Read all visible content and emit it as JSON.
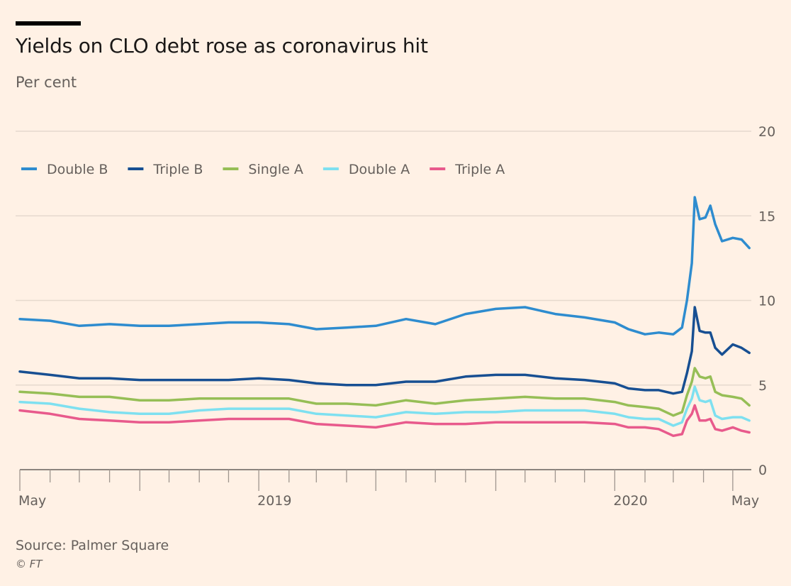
{
  "title": "Yields on CLO debt rose as coronavirus hit",
  "subtitle": "Per cent",
  "source": "Source: Palmer Square",
  "credit": "© FT",
  "colors": {
    "background": "#fff1e5",
    "grid": "#e6d9ce",
    "axis": "#66605c",
    "double_b": "#2e8ccf",
    "triple_b": "#174f92",
    "single_a": "#96be56",
    "double_a": "#7ee0f0",
    "triple_a": "#e85a8c"
  },
  "chart_data": {
    "type": "line",
    "title": "Yields on CLO debt rose as coronavirus hit",
    "ylabel": "Per cent",
    "ylim": [
      0,
      20
    ],
    "yticks": [
      0,
      5,
      10,
      15,
      20
    ],
    "xlim": [
      "2018-05-01",
      "2020-05-20"
    ],
    "xtick_labels": [
      {
        "date": "2018-05-01",
        "label": "May"
      },
      {
        "date": "2019-01-01",
        "label": "2019"
      },
      {
        "date": "2020-01-01",
        "label": "2020"
      },
      {
        "date": "2020-05-01",
        "label": "May"
      }
    ],
    "grid": true,
    "legend_position": "top-left",
    "series": [
      {
        "name": "Double B",
        "color_key": "double_b",
        "points": [
          [
            "2018-05-01",
            8.9
          ],
          [
            "2018-06-01",
            8.8
          ],
          [
            "2018-07-01",
            8.5
          ],
          [
            "2018-08-01",
            8.6
          ],
          [
            "2018-09-01",
            8.5
          ],
          [
            "2018-10-01",
            8.5
          ],
          [
            "2018-11-01",
            8.6
          ],
          [
            "2018-12-01",
            8.7
          ],
          [
            "2019-01-01",
            8.7
          ],
          [
            "2019-02-01",
            8.6
          ],
          [
            "2019-03-01",
            8.3
          ],
          [
            "2019-04-01",
            8.4
          ],
          [
            "2019-05-01",
            8.5
          ],
          [
            "2019-06-01",
            8.9
          ],
          [
            "2019-07-01",
            8.6
          ],
          [
            "2019-08-01",
            9.2
          ],
          [
            "2019-09-01",
            9.5
          ],
          [
            "2019-10-01",
            9.6
          ],
          [
            "2019-11-01",
            9.2
          ],
          [
            "2019-12-01",
            9.0
          ],
          [
            "2020-01-01",
            8.7
          ],
          [
            "2020-01-15",
            8.3
          ],
          [
            "2020-02-01",
            8.0
          ],
          [
            "2020-02-15",
            8.1
          ],
          [
            "2020-03-01",
            8.0
          ],
          [
            "2020-03-10",
            8.4
          ],
          [
            "2020-03-15",
            10.0
          ],
          [
            "2020-03-20",
            12.2
          ],
          [
            "2020-03-23",
            16.1
          ],
          [
            "2020-03-28",
            14.8
          ],
          [
            "2020-04-03",
            14.9
          ],
          [
            "2020-04-08",
            15.6
          ],
          [
            "2020-04-13",
            14.5
          ],
          [
            "2020-04-20",
            13.5
          ],
          [
            "2020-05-01",
            13.7
          ],
          [
            "2020-05-10",
            13.6
          ],
          [
            "2020-05-18",
            13.1
          ]
        ]
      },
      {
        "name": "Triple B",
        "color_key": "triple_b",
        "points": [
          [
            "2018-05-01",
            5.8
          ],
          [
            "2018-06-01",
            5.6
          ],
          [
            "2018-07-01",
            5.4
          ],
          [
            "2018-08-01",
            5.4
          ],
          [
            "2018-09-01",
            5.3
          ],
          [
            "2018-10-01",
            5.3
          ],
          [
            "2018-11-01",
            5.3
          ],
          [
            "2018-12-01",
            5.3
          ],
          [
            "2019-01-01",
            5.4
          ],
          [
            "2019-02-01",
            5.3
          ],
          [
            "2019-03-01",
            5.1
          ],
          [
            "2019-04-01",
            5.0
          ],
          [
            "2019-05-01",
            5.0
          ],
          [
            "2019-06-01",
            5.2
          ],
          [
            "2019-07-01",
            5.2
          ],
          [
            "2019-08-01",
            5.5
          ],
          [
            "2019-09-01",
            5.6
          ],
          [
            "2019-10-01",
            5.6
          ],
          [
            "2019-11-01",
            5.4
          ],
          [
            "2019-12-01",
            5.3
          ],
          [
            "2020-01-01",
            5.1
          ],
          [
            "2020-01-15",
            4.8
          ],
          [
            "2020-02-01",
            4.7
          ],
          [
            "2020-02-15",
            4.7
          ],
          [
            "2020-03-01",
            4.5
          ],
          [
            "2020-03-10",
            4.6
          ],
          [
            "2020-03-15",
            5.7
          ],
          [
            "2020-03-20",
            7.0
          ],
          [
            "2020-03-23",
            9.6
          ],
          [
            "2020-03-28",
            8.2
          ],
          [
            "2020-04-03",
            8.1
          ],
          [
            "2020-04-08",
            8.1
          ],
          [
            "2020-04-13",
            7.2
          ],
          [
            "2020-04-20",
            6.8
          ],
          [
            "2020-05-01",
            7.4
          ],
          [
            "2020-05-10",
            7.2
          ],
          [
            "2020-05-18",
            6.9
          ]
        ]
      },
      {
        "name": "Single A",
        "color_key": "single_a",
        "points": [
          [
            "2018-05-01",
            4.6
          ],
          [
            "2018-06-01",
            4.5
          ],
          [
            "2018-07-01",
            4.3
          ],
          [
            "2018-08-01",
            4.3
          ],
          [
            "2018-09-01",
            4.1
          ],
          [
            "2018-10-01",
            4.1
          ],
          [
            "2018-11-01",
            4.2
          ],
          [
            "2018-12-01",
            4.2
          ],
          [
            "2019-01-01",
            4.2
          ],
          [
            "2019-02-01",
            4.2
          ],
          [
            "2019-03-01",
            3.9
          ],
          [
            "2019-04-01",
            3.9
          ],
          [
            "2019-05-01",
            3.8
          ],
          [
            "2019-06-01",
            4.1
          ],
          [
            "2019-07-01",
            3.9
          ],
          [
            "2019-08-01",
            4.1
          ],
          [
            "2019-09-01",
            4.2
          ],
          [
            "2019-10-01",
            4.3
          ],
          [
            "2019-11-01",
            4.2
          ],
          [
            "2019-12-01",
            4.2
          ],
          [
            "2020-01-01",
            4.0
          ],
          [
            "2020-01-15",
            3.8
          ],
          [
            "2020-02-01",
            3.7
          ],
          [
            "2020-02-15",
            3.6
          ],
          [
            "2020-03-01",
            3.2
          ],
          [
            "2020-03-10",
            3.4
          ],
          [
            "2020-03-15",
            4.4
          ],
          [
            "2020-03-20",
            5.2
          ],
          [
            "2020-03-23",
            6.0
          ],
          [
            "2020-03-28",
            5.5
          ],
          [
            "2020-04-03",
            5.4
          ],
          [
            "2020-04-08",
            5.5
          ],
          [
            "2020-04-13",
            4.6
          ],
          [
            "2020-04-20",
            4.4
          ],
          [
            "2020-05-01",
            4.3
          ],
          [
            "2020-05-10",
            4.2
          ],
          [
            "2020-05-18",
            3.8
          ]
        ]
      },
      {
        "name": "Double A",
        "color_key": "double_a",
        "points": [
          [
            "2018-05-01",
            4.0
          ],
          [
            "2018-06-01",
            3.9
          ],
          [
            "2018-07-01",
            3.6
          ],
          [
            "2018-08-01",
            3.4
          ],
          [
            "2018-09-01",
            3.3
          ],
          [
            "2018-10-01",
            3.3
          ],
          [
            "2018-11-01",
            3.5
          ],
          [
            "2018-12-01",
            3.6
          ],
          [
            "2019-01-01",
            3.6
          ],
          [
            "2019-02-01",
            3.6
          ],
          [
            "2019-03-01",
            3.3
          ],
          [
            "2019-04-01",
            3.2
          ],
          [
            "2019-05-01",
            3.1
          ],
          [
            "2019-06-01",
            3.4
          ],
          [
            "2019-07-01",
            3.3
          ],
          [
            "2019-08-01",
            3.4
          ],
          [
            "2019-09-01",
            3.4
          ],
          [
            "2019-10-01",
            3.5
          ],
          [
            "2019-11-01",
            3.5
          ],
          [
            "2019-12-01",
            3.5
          ],
          [
            "2020-01-01",
            3.3
          ],
          [
            "2020-01-15",
            3.1
          ],
          [
            "2020-02-01",
            3.0
          ],
          [
            "2020-02-15",
            3.0
          ],
          [
            "2020-03-01",
            2.6
          ],
          [
            "2020-03-10",
            2.8
          ],
          [
            "2020-03-15",
            3.6
          ],
          [
            "2020-03-20",
            4.2
          ],
          [
            "2020-03-23",
            4.9
          ],
          [
            "2020-03-28",
            4.1
          ],
          [
            "2020-04-03",
            4.0
          ],
          [
            "2020-04-08",
            4.1
          ],
          [
            "2020-04-13",
            3.2
          ],
          [
            "2020-04-20",
            3.0
          ],
          [
            "2020-05-01",
            3.1
          ],
          [
            "2020-05-10",
            3.1
          ],
          [
            "2020-05-18",
            2.9
          ]
        ]
      },
      {
        "name": "Triple A",
        "color_key": "triple_a",
        "points": [
          [
            "2018-05-01",
            3.5
          ],
          [
            "2018-06-01",
            3.3
          ],
          [
            "2018-07-01",
            3.0
          ],
          [
            "2018-08-01",
            2.9
          ],
          [
            "2018-09-01",
            2.8
          ],
          [
            "2018-10-01",
            2.8
          ],
          [
            "2018-11-01",
            2.9
          ],
          [
            "2018-12-01",
            3.0
          ],
          [
            "2019-01-01",
            3.0
          ],
          [
            "2019-02-01",
            3.0
          ],
          [
            "2019-03-01",
            2.7
          ],
          [
            "2019-04-01",
            2.6
          ],
          [
            "2019-05-01",
            2.5
          ],
          [
            "2019-06-01",
            2.8
          ],
          [
            "2019-07-01",
            2.7
          ],
          [
            "2019-08-01",
            2.7
          ],
          [
            "2019-09-01",
            2.8
          ],
          [
            "2019-10-01",
            2.8
          ],
          [
            "2019-11-01",
            2.8
          ],
          [
            "2019-12-01",
            2.8
          ],
          [
            "2020-01-01",
            2.7
          ],
          [
            "2020-01-15",
            2.5
          ],
          [
            "2020-02-01",
            2.5
          ],
          [
            "2020-02-15",
            2.4
          ],
          [
            "2020-03-01",
            2.0
          ],
          [
            "2020-03-10",
            2.1
          ],
          [
            "2020-03-15",
            2.9
          ],
          [
            "2020-03-20",
            3.3
          ],
          [
            "2020-03-23",
            3.8
          ],
          [
            "2020-03-28",
            2.9
          ],
          [
            "2020-04-03",
            2.9
          ],
          [
            "2020-04-08",
            3.0
          ],
          [
            "2020-04-13",
            2.4
          ],
          [
            "2020-04-20",
            2.3
          ],
          [
            "2020-05-01",
            2.5
          ],
          [
            "2020-05-10",
            2.3
          ],
          [
            "2020-05-18",
            2.2
          ]
        ]
      }
    ]
  }
}
